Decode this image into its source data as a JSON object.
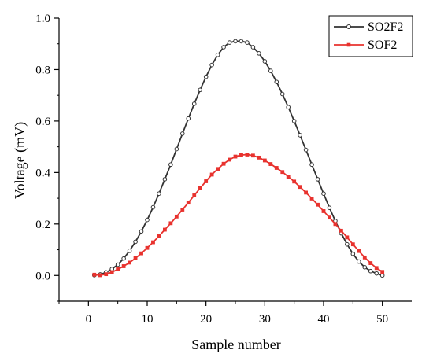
{
  "chart_data": {
    "type": "line",
    "title": "",
    "xlabel": "Sample number",
    "ylabel": "Voltage (mV)",
    "xlim": [
      -5,
      55
    ],
    "ylim": [
      -0.1,
      1.0
    ],
    "x_ticks": [
      0,
      10,
      20,
      30,
      40,
      50
    ],
    "x_tick_labels": [
      "0",
      "10",
      "20",
      "30",
      "40",
      "50"
    ],
    "y_ticks": [
      0.0,
      0.2,
      0.4,
      0.6,
      0.8,
      1.0
    ],
    "y_tick_labels": [
      "0.0",
      "0.2",
      "0.4",
      "0.6",
      "0.8",
      "1.0"
    ],
    "grid": false,
    "legend_position": "top-right",
    "x": [
      1,
      2,
      3,
      4,
      5,
      6,
      7,
      8,
      9,
      10,
      11,
      12,
      13,
      14,
      15,
      16,
      17,
      18,
      19,
      20,
      21,
      22,
      23,
      24,
      25,
      26,
      27,
      28,
      29,
      30,
      31,
      32,
      33,
      34,
      35,
      36,
      37,
      38,
      39,
      40,
      41,
      42,
      43,
      44,
      45,
      46,
      47,
      48,
      49,
      50
    ],
    "series": [
      {
        "name": "SO2F2",
        "color": "#333333",
        "marker": "circle",
        "values": [
          0.001,
          0.004,
          0.012,
          0.025,
          0.042,
          0.066,
          0.096,
          0.131,
          0.171,
          0.216,
          0.265,
          0.318,
          0.374,
          0.431,
          0.491,
          0.551,
          0.61,
          0.667,
          0.721,
          0.772,
          0.818,
          0.857,
          0.887,
          0.905,
          0.91,
          0.91,
          0.905,
          0.887,
          0.863,
          0.832,
          0.795,
          0.752,
          0.705,
          0.654,
          0.6,
          0.545,
          0.488,
          0.431,
          0.374,
          0.318,
          0.263,
          0.212,
          0.164,
          0.121,
          0.084,
          0.054,
          0.032,
          0.017,
          0.008,
          0.0
        ]
      },
      {
        "name": "SOF2",
        "color": "#e8322e",
        "marker": "square",
        "values": [
          0.003,
          0.001,
          0.005,
          0.013,
          0.024,
          0.036,
          0.05,
          0.067,
          0.086,
          0.107,
          0.129,
          0.153,
          0.178,
          0.203,
          0.229,
          0.256,
          0.283,
          0.311,
          0.339,
          0.366,
          0.392,
          0.414,
          0.434,
          0.45,
          0.462,
          0.468,
          0.47,
          0.466,
          0.458,
          0.447,
          0.433,
          0.418,
          0.402,
          0.384,
          0.365,
          0.344,
          0.322,
          0.299,
          0.275,
          0.25,
          0.225,
          0.2,
          0.174,
          0.148,
          0.121,
          0.095,
          0.07,
          0.048,
          0.029,
          0.014
        ]
      }
    ]
  }
}
